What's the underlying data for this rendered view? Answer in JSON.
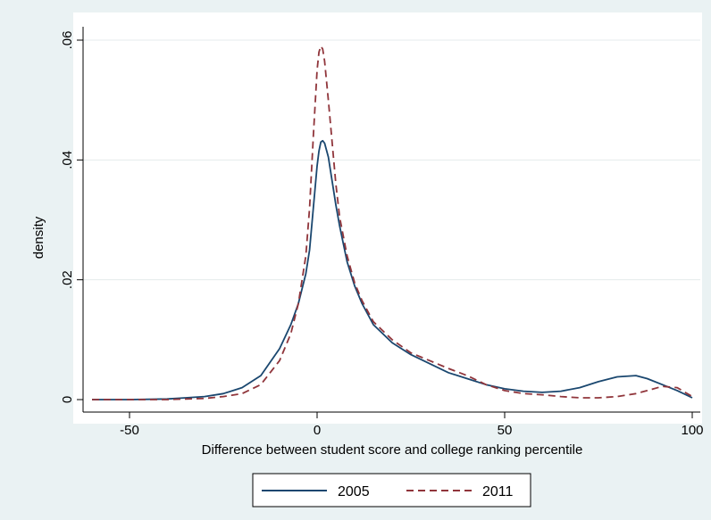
{
  "chart_data": {
    "type": "line",
    "title": "",
    "xlabel": "Difference between student score and college ranking percentile",
    "ylabel": "density",
    "xlim": [
      -60,
      100
    ],
    "ylim": [
      0,
      0.06
    ],
    "xticks": [
      -50,
      0,
      50,
      100
    ],
    "yticks": [
      0,
      0.02,
      0.04,
      0.06
    ],
    "xtick_labels": [
      "-50",
      "0",
      "50",
      "100"
    ],
    "ytick_labels": [
      "0",
      ".02",
      ".04",
      ".06"
    ],
    "grid": true,
    "legend_position": "bottom",
    "series": [
      {
        "name": "2005",
        "color": "#1a476f",
        "style": "solid",
        "x": [
          -60,
          -50,
          -40,
          -35,
          -30,
          -25,
          -20,
          -15,
          -10,
          -7,
          -5,
          -3,
          -2,
          -1,
          0,
          0.5,
          1,
          1.5,
          2,
          3,
          4,
          5,
          6,
          8,
          10,
          12,
          15,
          20,
          25,
          30,
          35,
          40,
          45,
          50,
          55,
          60,
          65,
          70,
          75,
          80,
          85,
          88,
          92,
          96,
          100
        ],
        "y": [
          0.0,
          0.0,
          0.0001,
          0.0003,
          0.0005,
          0.001,
          0.002,
          0.004,
          0.0085,
          0.0125,
          0.016,
          0.021,
          0.025,
          0.032,
          0.039,
          0.0415,
          0.043,
          0.0432,
          0.0428,
          0.0405,
          0.0365,
          0.0325,
          0.029,
          0.023,
          0.019,
          0.016,
          0.0125,
          0.0095,
          0.0075,
          0.006,
          0.0045,
          0.0035,
          0.0025,
          0.0018,
          0.0014,
          0.0012,
          0.0014,
          0.002,
          0.003,
          0.0038,
          0.004,
          0.0035,
          0.0025,
          0.0015,
          0.0003
        ]
      },
      {
        "name": "2011",
        "color": "#90353b",
        "style": "dashed",
        "x": [
          -60,
          -50,
          -40,
          -35,
          -30,
          -25,
          -20,
          -15,
          -10,
          -7,
          -5,
          -3,
          -2,
          -1,
          0,
          0.5,
          1,
          1.5,
          2,
          3,
          4,
          5,
          6,
          8,
          10,
          12,
          15,
          20,
          25,
          30,
          35,
          40,
          45,
          50,
          55,
          60,
          65,
          70,
          75,
          80,
          85,
          88,
          92,
          96,
          100
        ],
        "y": [
          0.0,
          0.0,
          0.0,
          0.0001,
          0.0002,
          0.0005,
          0.001,
          0.0025,
          0.0065,
          0.011,
          0.016,
          0.024,
          0.032,
          0.044,
          0.055,
          0.058,
          0.059,
          0.0585,
          0.0565,
          0.05,
          0.043,
          0.036,
          0.0305,
          0.024,
          0.0195,
          0.0165,
          0.013,
          0.01,
          0.0078,
          0.0065,
          0.0052,
          0.004,
          0.0025,
          0.0015,
          0.001,
          0.0008,
          0.0005,
          0.0003,
          0.0003,
          0.0005,
          0.001,
          0.0015,
          0.0022,
          0.002,
          0.0005
        ]
      }
    ]
  }
}
